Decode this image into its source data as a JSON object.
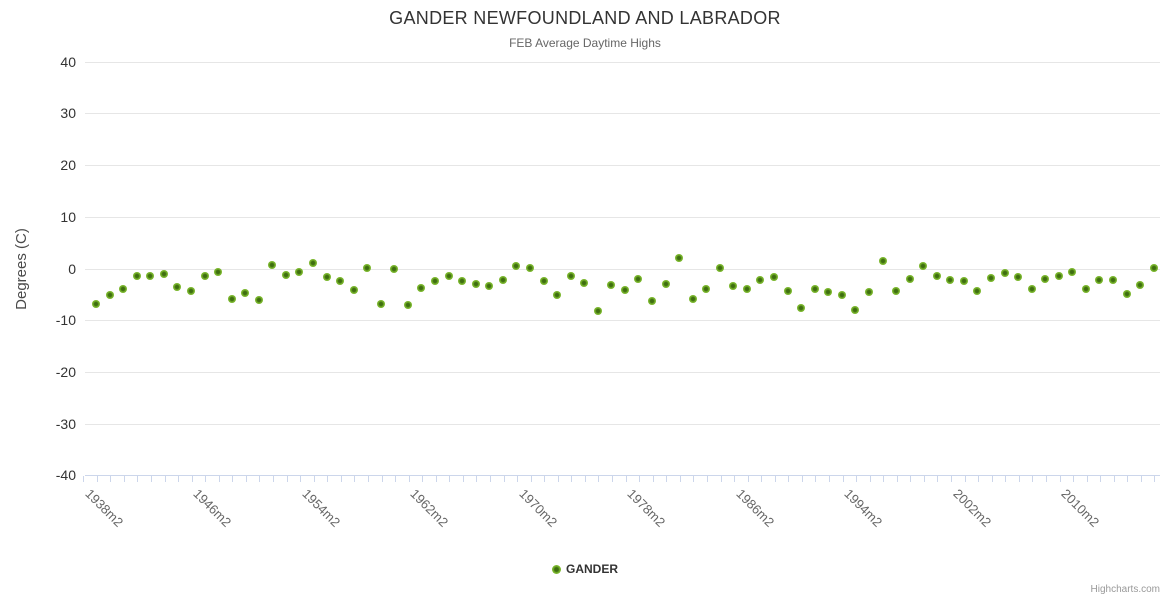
{
  "header": {
    "title": "GANDER NEWFOUNDLAND AND LABRADOR",
    "subtitle": "FEB Average Daytime Highs"
  },
  "legend": {
    "items": [
      {
        "label": "GANDER",
        "color": "#7ab62c"
      }
    ]
  },
  "credit": {
    "label": "Highcharts.com"
  },
  "colors": {
    "point_ring": "#7ab62c",
    "point_core": "#3e6e10",
    "gridline": "#e6e6e6",
    "axis_line": "#ccd6eb",
    "title_text": "#333333",
    "subtitle_text": "#666666",
    "y_label_text": "#333333",
    "x_label_text": "#666666",
    "credit_text": "#999999"
  },
  "chart_data": {
    "type": "scatter",
    "title": "GANDER NEWFOUNDLAND AND LABRADOR",
    "subtitle": "FEB Average Daytime Highs",
    "xlabel": "",
    "ylabel": "Degrees (C)",
    "ylim": [
      -40,
      40
    ],
    "ytick_interval": 10,
    "ytick_labels": [
      "40",
      "30",
      "20",
      "10",
      "0",
      "-10",
      "-20",
      "-30",
      "-40"
    ],
    "grid": true,
    "legend_position": "bottom-center",
    "xtick_labels": [
      "1938m2",
      "1946m2",
      "1954m2",
      "1962m2",
      "1970m2",
      "1978m2",
      "1986m2",
      "1994m2",
      "2002m2",
      "2010m2"
    ],
    "xtick_label_every": 8,
    "x_unit_suffix": "m2",
    "series": [
      {
        "name": "GANDER",
        "color": "#7ab62c",
        "points": [
          [
            1938,
            -6.9
          ],
          [
            1939,
            -5.1
          ],
          [
            1940,
            -4.0
          ],
          [
            1941,
            -1.5
          ],
          [
            1942,
            -1.4
          ],
          [
            1943,
            -1.0
          ],
          [
            1944,
            -3.6
          ],
          [
            1945,
            -4.3
          ],
          [
            1946,
            -1.4
          ],
          [
            1947,
            -0.6
          ],
          [
            1948,
            -5.8
          ],
          [
            1949,
            -4.8
          ],
          [
            1950,
            -6.0
          ],
          [
            1951,
            0.6
          ],
          [
            1952,
            -1.3
          ],
          [
            1953,
            -0.7
          ],
          [
            1954,
            1.0
          ],
          [
            1955,
            -1.7
          ],
          [
            1956,
            -2.5
          ],
          [
            1957,
            -4.2
          ],
          [
            1958,
            0.1
          ],
          [
            1959,
            -6.8
          ],
          [
            1960,
            -0.1
          ],
          [
            1961,
            -7.1
          ],
          [
            1962,
            -3.7
          ],
          [
            1963,
            -2.5
          ],
          [
            1964,
            -1.5
          ],
          [
            1965,
            -2.4
          ],
          [
            1966,
            -2.9
          ],
          [
            1967,
            -3.4
          ],
          [
            1968,
            -2.3
          ],
          [
            1969,
            0.5
          ],
          [
            1970,
            0.2
          ],
          [
            1971,
            -2.4
          ],
          [
            1972,
            -5.1
          ],
          [
            1973,
            -1.4
          ],
          [
            1974,
            -2.8
          ],
          [
            1975,
            -8.3
          ],
          [
            1976,
            -3.1
          ],
          [
            1977,
            -4.1
          ],
          [
            1978,
            -2.1
          ],
          [
            1979,
            -6.3
          ],
          [
            1980,
            -3.0
          ],
          [
            1981,
            2.0
          ],
          [
            1982,
            -5.8
          ],
          [
            1983,
            -3.9
          ],
          [
            1984,
            0.2
          ],
          [
            1985,
            -3.3
          ],
          [
            1986,
            -4.0
          ],
          [
            1987,
            -2.2
          ],
          [
            1988,
            -1.7
          ],
          [
            1989,
            -4.3
          ],
          [
            1990,
            -7.6
          ],
          [
            1991,
            -4.0
          ],
          [
            1992,
            -4.5
          ],
          [
            1993,
            -5.2
          ],
          [
            1994,
            -8.1
          ],
          [
            1995,
            -4.6
          ],
          [
            1996,
            1.4
          ],
          [
            1997,
            -4.4
          ],
          [
            1998,
            -2.0
          ],
          [
            1999,
            0.4
          ],
          [
            2000,
            -1.4
          ],
          [
            2001,
            -2.3
          ],
          [
            2002,
            -2.4
          ],
          [
            2003,
            -4.4
          ],
          [
            2004,
            -1.9
          ],
          [
            2005,
            -0.9
          ],
          [
            2006,
            -1.6
          ],
          [
            2007,
            -3.9
          ],
          [
            2008,
            -2.1
          ],
          [
            2009,
            -1.4
          ],
          [
            2010,
            -0.7
          ],
          [
            2011,
            -4.0
          ],
          [
            2012,
            -2.2
          ],
          [
            2013,
            -2.3
          ],
          [
            2014,
            -5.0
          ],
          [
            2015,
            -3.2
          ],
          [
            2016,
            0.2
          ]
        ]
      }
    ]
  }
}
